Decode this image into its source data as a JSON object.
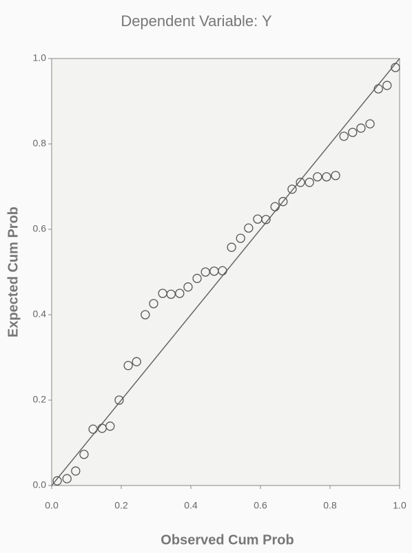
{
  "chart_data": {
    "type": "scatter",
    "title": "Dependent Variable: Y",
    "x_label": "Observed Cum Prob",
    "y_label": "Expected Cum Prob",
    "series": [
      {
        "color": "#555555",
        "x": [
          0.016,
          0.044,
          0.069,
          0.093,
          0.119,
          0.145,
          0.168,
          0.194,
          0.22,
          0.244,
          0.269,
          0.293,
          0.319,
          0.343,
          0.368,
          0.392,
          0.418,
          0.442,
          0.467,
          0.491,
          0.517,
          0.543,
          0.566,
          0.592,
          0.616,
          0.642,
          0.665,
          0.691,
          0.715,
          0.741,
          0.764,
          0.79,
          0.816,
          0.84,
          0.865,
          0.889,
          0.915,
          0.939,
          0.964,
          0.988
        ],
        "values": [
          0.011,
          0.016,
          0.034,
          0.073,
          0.132,
          0.134,
          0.139,
          0.2,
          0.281,
          0.29,
          0.4,
          0.426,
          0.45,
          0.448,
          0.45,
          0.465,
          0.485,
          0.5,
          0.502,
          0.503,
          0.558,
          0.579,
          0.603,
          0.624,
          0.623,
          0.653,
          0.665,
          0.694,
          0.71,
          0.71,
          0.723,
          0.723,
          0.726,
          0.818,
          0.827,
          0.837,
          0.847,
          0.929,
          0.937,
          0.979
        ]
      }
    ],
    "xlim": [
      0,
      1
    ],
    "ylim": [
      0,
      1
    ],
    "xticks": [
      {
        "value": 0,
        "label": "0.0"
      },
      0.2,
      0.4,
      0.6,
      0.8,
      {
        "value": 1,
        "label": "1.0"
      }
    ],
    "yticks": [
      {
        "value": 0,
        "label": "0.0"
      },
      0.2,
      0.4,
      0.6,
      0.8,
      {
        "value": 1,
        "label": "1.0"
      }
    ],
    "grid": false
  }
}
